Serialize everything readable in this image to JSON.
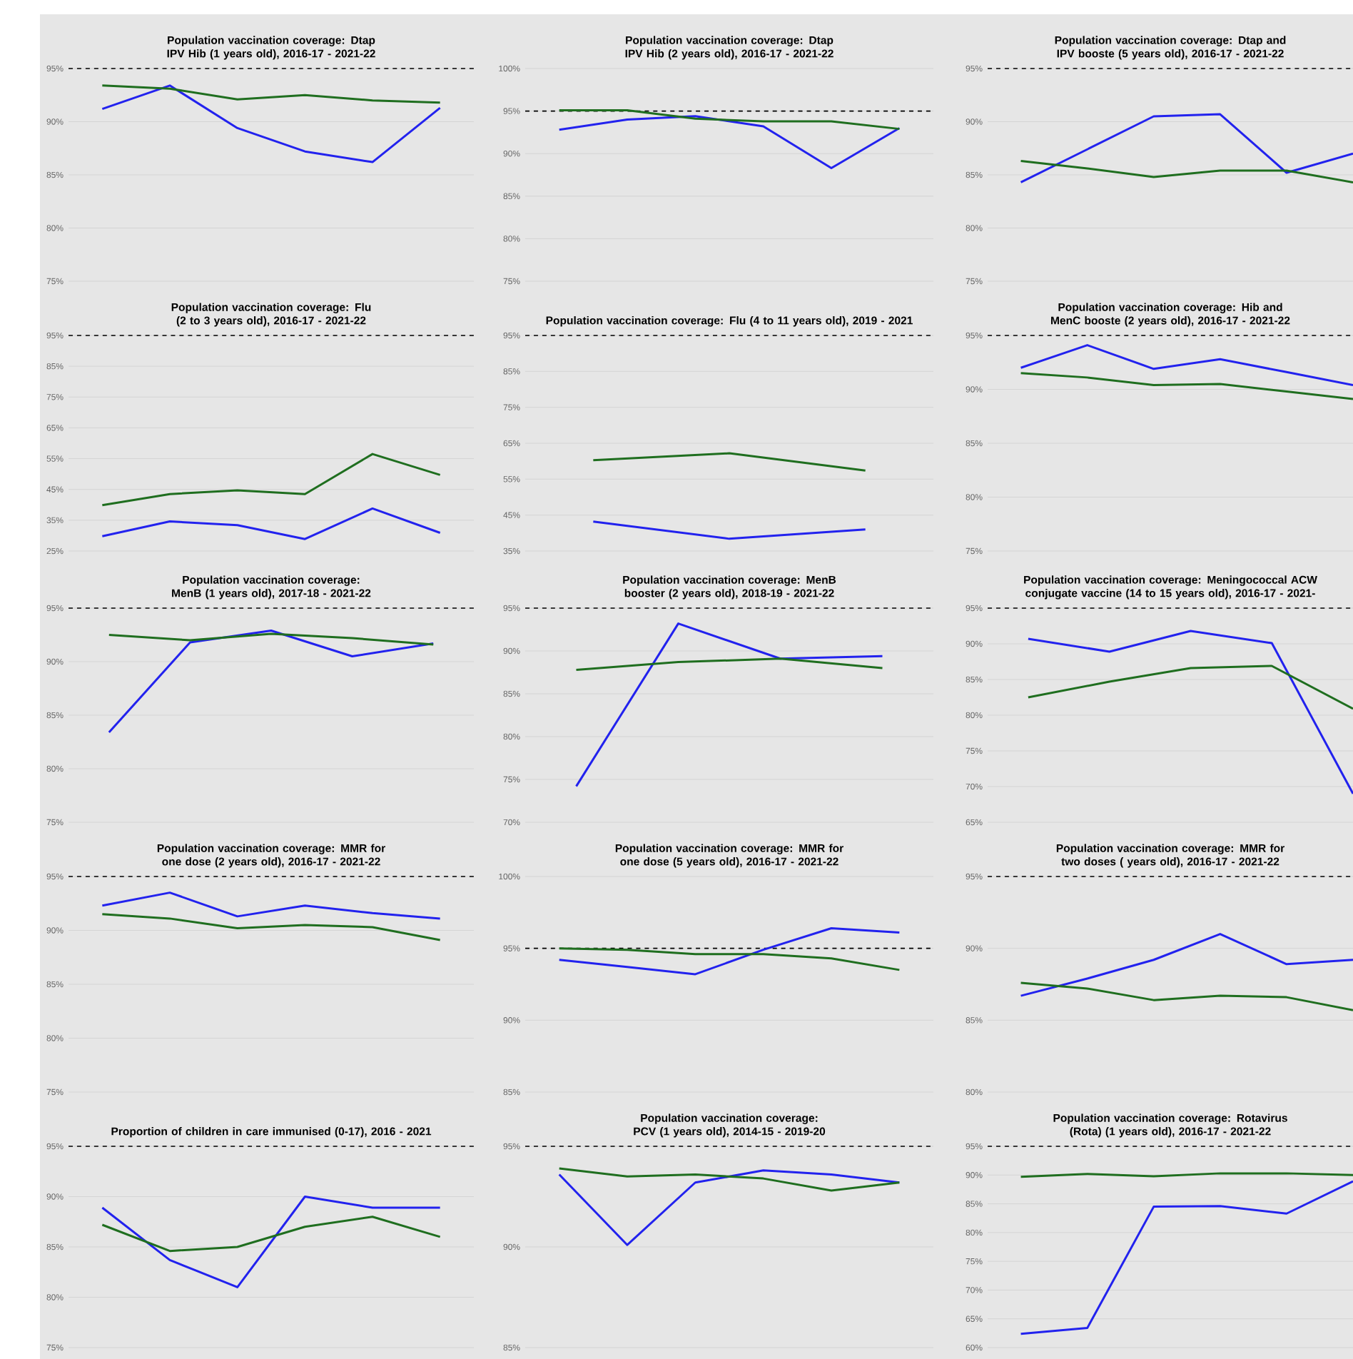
{
  "chart_data": [
    {
      "type": "line",
      "title": "Population vaccination coverage: Dtap IPV Hib (1 years old), 2016-17 - 2021-22",
      "categories": [
        null,
        null,
        null,
        null,
        null,
        null
      ],
      "series": [
        {
          "color": "#2222ee",
          "values": [
            91.2,
            93.4,
            89.4,
            87.2,
            86.2,
            91.3
          ]
        },
        {
          "color": "#1f6e1f",
          "values": [
            93.4,
            93.1,
            92.1,
            92.5,
            92.0,
            91.8
          ]
        }
      ],
      "ylim": [
        75,
        95
      ],
      "yticks": [
        {
          "value": 75,
          "label": "75%"
        },
        {
          "value": 80,
          "label": "80%"
        },
        {
          "value": 85,
          "label": "85%"
        },
        {
          "value": 90,
          "label": "90%"
        },
        {
          "value": 95,
          "label": "95%"
        }
      ],
      "grid": true,
      "tick_labels": "y",
      "ref_lines": [
        {
          "axis": "y",
          "value": 95,
          "color": "#000000",
          "line_style": "dashed"
        }
      ]
    },
    {
      "type": "line",
      "title": "Population vaccination coverage: Dtap IPV Hib (2 years old), 2016-17 - 2021-22",
      "categories": [
        null,
        null,
        null,
        null,
        null,
        null
      ],
      "series": [
        {
          "color": "#2222ee",
          "values": [
            92.8,
            94.0,
            94.4,
            93.2,
            88.3,
            93.0
          ]
        },
        {
          "color": "#1f6e1f",
          "values": [
            95.1,
            95.1,
            94.1,
            93.8,
            93.8,
            92.9
          ]
        }
      ],
      "ylim": [
        75,
        100
      ],
      "yticks": [
        {
          "value": 75,
          "label": "75%"
        },
        {
          "value": 80,
          "label": "80%"
        },
        {
          "value": 85,
          "label": "85%"
        },
        {
          "value": 90,
          "label": "90%"
        },
        {
          "value": 95,
          "label": "95%"
        },
        {
          "value": 100,
          "label": "100%"
        }
      ],
      "grid": true,
      "tick_labels": "y",
      "ref_lines": [
        {
          "axis": "y",
          "value": 95,
          "color": "#000000",
          "line_style": "dashed"
        }
      ]
    },
    {
      "type": "line",
      "title": "Population vaccination coverage: Dtap and IPV booste (5 years old), 2016-17 - 2021-22",
      "categories": [
        null,
        null,
        null,
        null,
        null,
        null
      ],
      "series": [
        {
          "color": "#2222ee",
          "values": [
            84.3,
            87.4,
            90.5,
            90.7,
            85.2,
            87.0
          ]
        },
        {
          "color": "#1f6e1f",
          "values": [
            86.3,
            85.6,
            84.8,
            85.4,
            85.4,
            84.3
          ]
        }
      ],
      "ylim": [
        75,
        95
      ],
      "yticks": [
        {
          "value": 75,
          "label": "75%"
        },
        {
          "value": 80,
          "label": "80%"
        },
        {
          "value": 85,
          "label": "85%"
        },
        {
          "value": 90,
          "label": "90%"
        },
        {
          "value": 95,
          "label": "95%"
        }
      ],
      "grid": true,
      "tick_labels": "y",
      "ref_lines": [
        {
          "axis": "y",
          "value": 95,
          "color": "#000000",
          "line_style": "dashed"
        }
      ]
    },
    {
      "type": "line",
      "title": "Population vaccination coverage: Flu (2 to 3 years old), 2016-17 - 2021-22",
      "categories": [
        null,
        null,
        null,
        null,
        null,
        null
      ],
      "series": [
        {
          "color": "#2222ee",
          "values": [
            29.8,
            34.6,
            33.4,
            28.9,
            38.8,
            30.9
          ]
        },
        {
          "color": "#1f6e1f",
          "values": [
            39.9,
            43.5,
            44.7,
            43.5,
            56.5,
            49.7
          ]
        }
      ],
      "ylim": [
        25,
        95
      ],
      "yticks": [
        {
          "value": 25,
          "label": "25%"
        },
        {
          "value": 35,
          "label": "35%"
        },
        {
          "value": 45,
          "label": "45%"
        },
        {
          "value": 55,
          "label": "55%"
        },
        {
          "value": 65,
          "label": "65%"
        },
        {
          "value": 75,
          "label": "75%"
        },
        {
          "value": 85,
          "label": "85%"
        },
        {
          "value": 95,
          "label": "95%"
        }
      ],
      "grid": true,
      "tick_labels": "y",
      "ref_lines": [
        {
          "axis": "y",
          "value": 95,
          "color": "#000000",
          "line_style": "dashed"
        }
      ]
    },
    {
      "type": "line",
      "title": "Population vaccination coverage: Flu (4 to 11 years old), 2019 - 2021",
      "categories": [
        null,
        null,
        null
      ],
      "series": [
        {
          "color": "#2222ee",
          "values": [
            43.2,
            38.4,
            41.0
          ]
        },
        {
          "color": "#1f6e1f",
          "values": [
            60.3,
            62.2,
            57.4
          ]
        }
      ],
      "ylim": [
        35,
        95
      ],
      "yticks": [
        {
          "value": 35,
          "label": "35%"
        },
        {
          "value": 45,
          "label": "45%"
        },
        {
          "value": 55,
          "label": "55%"
        },
        {
          "value": 65,
          "label": "65%"
        },
        {
          "value": 75,
          "label": "75%"
        },
        {
          "value": 85,
          "label": "85%"
        },
        {
          "value": 95,
          "label": "95%"
        }
      ],
      "grid": true,
      "tick_labels": "y",
      "ref_lines": [
        {
          "axis": "y",
          "value": 95,
          "color": "#000000",
          "line_style": "dashed"
        }
      ]
    },
    {
      "type": "line",
      "title": "Population vaccination coverage: Hib and MenC booste (2 years old), 2016-17 - 2021-22",
      "categories": [
        null,
        null,
        null,
        null,
        null,
        null
      ],
      "series": [
        {
          "color": "#2222ee",
          "values": [
            92.0,
            94.1,
            91.9,
            92.8,
            91.6,
            90.4
          ]
        },
        {
          "color": "#1f6e1f",
          "values": [
            91.5,
            91.1,
            90.4,
            90.5,
            89.8,
            89.1
          ]
        }
      ],
      "ylim": [
        75,
        95
      ],
      "yticks": [
        {
          "value": 75,
          "label": "75%"
        },
        {
          "value": 80,
          "label": "80%"
        },
        {
          "value": 85,
          "label": "85%"
        },
        {
          "value": 90,
          "label": "90%"
        },
        {
          "value": 95,
          "label": "95%"
        }
      ],
      "grid": true,
      "tick_labels": "y",
      "ref_lines": [
        {
          "axis": "y",
          "value": 95,
          "color": "#000000",
          "line_style": "dashed"
        }
      ]
    },
    {
      "type": "line",
      "title": "Population vaccination coverage: MenB (1 years old), 2017-18 - 2021-22",
      "categories": [
        null,
        null,
        null,
        null,
        null
      ],
      "series": [
        {
          "color": "#2222ee",
          "values": [
            83.4,
            91.8,
            92.9,
            90.5,
            91.7
          ]
        },
        {
          "color": "#1f6e1f",
          "values": [
            92.5,
            92.0,
            92.6,
            92.2,
            91.6
          ]
        }
      ],
      "ylim": [
        75,
        95
      ],
      "yticks": [
        {
          "value": 75,
          "label": "75%"
        },
        {
          "value": 80,
          "label": "80%"
        },
        {
          "value": 85,
          "label": "85%"
        },
        {
          "value": 90,
          "label": "90%"
        },
        {
          "value": 95,
          "label": "95%"
        }
      ],
      "grid": true,
      "tick_labels": "y",
      "ref_lines": [
        {
          "axis": "y",
          "value": 95,
          "color": "#000000",
          "line_style": "dashed"
        }
      ]
    },
    {
      "type": "line",
      "title": "Population vaccination coverage: MenB booster (2 years old), 2018-19 - 2021-22",
      "categories": [
        null,
        null,
        null,
        null
      ],
      "series": [
        {
          "color": "#2222ee",
          "values": [
            74.2,
            93.2,
            89.1,
            89.4
          ]
        },
        {
          "color": "#1f6e1f",
          "values": [
            87.8,
            88.7,
            89.1,
            88.0
          ]
        }
      ],
      "ylim": [
        70,
        95
      ],
      "yticks": [
        {
          "value": 70,
          "label": "70%"
        },
        {
          "value": 75,
          "label": "75%"
        },
        {
          "value": 80,
          "label": "80%"
        },
        {
          "value": 85,
          "label": "85%"
        },
        {
          "value": 90,
          "label": "90%"
        },
        {
          "value": 95,
          "label": "95%"
        }
      ],
      "grid": true,
      "tick_labels": "y",
      "ref_lines": [
        {
          "axis": "y",
          "value": 95,
          "color": "#000000",
          "line_style": "dashed"
        }
      ]
    },
    {
      "type": "line",
      "title": "Population vaccination coverage: Meningococcal ACW conjugate vaccine (14 to 15 years old), 2016-17 - 2021-",
      "categories": [
        null,
        null,
        null,
        null,
        null
      ],
      "series": [
        {
          "color": "#2222ee",
          "values": [
            90.7,
            88.9,
            91.8,
            90.1,
            69.0
          ]
        },
        {
          "color": "#1f6e1f",
          "values": [
            82.5,
            84.7,
            86.6,
            86.9,
            80.9
          ]
        }
      ],
      "ylim": [
        65,
        95
      ],
      "yticks": [
        {
          "value": 65,
          "label": "65%"
        },
        {
          "value": 70,
          "label": "70%"
        },
        {
          "value": 75,
          "label": "75%"
        },
        {
          "value": 80,
          "label": "80%"
        },
        {
          "value": 85,
          "label": "85%"
        },
        {
          "value": 90,
          "label": "90%"
        },
        {
          "value": 95,
          "label": "95%"
        }
      ],
      "grid": true,
      "tick_labels": "y",
      "ref_lines": [
        {
          "axis": "y",
          "value": 95,
          "color": "#000000",
          "line_style": "dashed"
        }
      ]
    },
    {
      "type": "line",
      "title": "Population vaccination coverage: MMR for one dose (2 years old), 2016-17 - 2021-22",
      "categories": [
        null,
        null,
        null,
        null,
        null,
        null
      ],
      "series": [
        {
          "color": "#2222ee",
          "values": [
            92.3,
            93.5,
            91.3,
            92.3,
            91.6,
            91.1
          ]
        },
        {
          "color": "#1f6e1f",
          "values": [
            91.5,
            91.1,
            90.2,
            90.5,
            90.3,
            89.1
          ]
        }
      ],
      "ylim": [
        75,
        95
      ],
      "yticks": [
        {
          "value": 75,
          "label": "75%"
        },
        {
          "value": 80,
          "label": "80%"
        },
        {
          "value": 85,
          "label": "85%"
        },
        {
          "value": 90,
          "label": "90%"
        },
        {
          "value": 95,
          "label": "95%"
        }
      ],
      "grid": true,
      "tick_labels": "y",
      "ref_lines": [
        {
          "axis": "y",
          "value": 95,
          "color": "#000000",
          "line_style": "dashed"
        }
      ]
    },
    {
      "type": "line",
      "title": "Population vaccination coverage: MMR for one dose (5 years old), 2016-17 - 2021-22",
      "categories": [
        null,
        null,
        null,
        null,
        null,
        null
      ],
      "series": [
        {
          "color": "#2222ee",
          "values": [
            94.2,
            93.7,
            93.2,
            94.9,
            96.4,
            96.1
          ]
        },
        {
          "color": "#1f6e1f",
          "values": [
            95.0,
            94.9,
            94.6,
            94.6,
            94.3,
            93.5
          ]
        }
      ],
      "ylim": [
        85,
        100
      ],
      "yticks": [
        {
          "value": 85,
          "label": "85%"
        },
        {
          "value": 90,
          "label": "90%"
        },
        {
          "value": 95,
          "label": "95%"
        },
        {
          "value": 100,
          "label": "100%"
        }
      ],
      "grid": true,
      "tick_labels": "y",
      "ref_lines": [
        {
          "axis": "y",
          "value": 95,
          "color": "#000000",
          "line_style": "dashed"
        }
      ]
    },
    {
      "type": "line",
      "title": "Population vaccination coverage: MMR for two doses ( years old), 2016-17 - 2021-22",
      "categories": [
        null,
        null,
        null,
        null,
        null,
        null
      ],
      "series": [
        {
          "color": "#2222ee",
          "values": [
            86.7,
            87.9,
            89.2,
            91.0,
            88.9,
            89.2
          ]
        },
        {
          "color": "#1f6e1f",
          "values": [
            87.6,
            87.2,
            86.4,
            86.7,
            86.6,
            85.7
          ]
        }
      ],
      "ylim": [
        80,
        95
      ],
      "yticks": [
        {
          "value": 80,
          "label": "80%"
        },
        {
          "value": 85,
          "label": "85%"
        },
        {
          "value": 90,
          "label": "90%"
        },
        {
          "value": 95,
          "label": "95%"
        }
      ],
      "grid": true,
      "tick_labels": "y",
      "ref_lines": [
        {
          "axis": "y",
          "value": 95,
          "color": "#000000",
          "line_style": "dashed"
        }
      ]
    },
    {
      "type": "line",
      "title": "Proportion of children in care immunised (0-17), 2016 - 2021",
      "categories": [
        null,
        null,
        null,
        null,
        null,
        null
      ],
      "series": [
        {
          "color": "#2222ee",
          "values": [
            88.9,
            83.7,
            81.0,
            90.0,
            88.9,
            88.9
          ]
        },
        {
          "color": "#1f6e1f",
          "values": [
            87.2,
            84.6,
            85.0,
            87.0,
            88.0,
            86.0
          ]
        }
      ],
      "ylim": [
        75,
        95
      ],
      "yticks": [
        {
          "value": 75,
          "label": "75%"
        },
        {
          "value": 80,
          "label": "80%"
        },
        {
          "value": 85,
          "label": "85%"
        },
        {
          "value": 90,
          "label": "90%"
        },
        {
          "value": 95,
          "label": "95%"
        }
      ],
      "grid": true,
      "tick_labels": "y",
      "ref_lines": [
        {
          "axis": "y",
          "value": 95,
          "color": "#000000",
          "line_style": "dashed"
        }
      ]
    },
    {
      "type": "line",
      "title": "Population vaccination coverage: PCV (1 years old), 2014-15 - 2019-20",
      "categories": [
        null,
        null,
        null,
        null,
        null,
        null
      ],
      "series": [
        {
          "color": "#2222ee",
          "values": [
            93.6,
            90.1,
            93.2,
            93.8,
            93.6,
            93.2
          ]
        },
        {
          "color": "#1f6e1f",
          "values": [
            93.9,
            93.5,
            93.6,
            93.4,
            92.8,
            93.2
          ]
        }
      ],
      "ylim": [
        85,
        95
      ],
      "yticks": [
        {
          "value": 85,
          "label": "85%"
        },
        {
          "value": 90,
          "label": "90%"
        },
        {
          "value": 95,
          "label": "95%"
        }
      ],
      "grid": true,
      "tick_labels": "y",
      "ref_lines": [
        {
          "axis": "y",
          "value": 95,
          "color": "#000000",
          "line_style": "dashed"
        }
      ]
    },
    {
      "type": "line",
      "title": "Population vaccination coverage: Rotavirus (Rota) (1 years old), 2016-17 - 2021-22",
      "categories": [
        null,
        null,
        null,
        null,
        null,
        null
      ],
      "series": [
        {
          "color": "#2222ee",
          "values": [
            62.4,
            63.4,
            84.5,
            84.6,
            83.3,
            88.9
          ]
        },
        {
          "color": "#1f6e1f",
          "values": [
            89.7,
            90.2,
            89.8,
            90.3,
            90.3,
            90.0
          ]
        }
      ],
      "ylim": [
        60,
        95
      ],
      "yticks": [
        {
          "value": 60,
          "label": "60%"
        },
        {
          "value": 65,
          "label": "65%"
        },
        {
          "value": 70,
          "label": "70%"
        },
        {
          "value": 75,
          "label": "75%"
        },
        {
          "value": 80,
          "label": "80%"
        },
        {
          "value": 85,
          "label": "85%"
        },
        {
          "value": 90,
          "label": "90%"
        },
        {
          "value": 95,
          "label": "95%"
        }
      ],
      "grid": true,
      "tick_labels": "y",
      "ref_lines": [
        {
          "axis": "y",
          "value": 95,
          "color": "#000000",
          "line_style": "dashed"
        }
      ]
    }
  ]
}
